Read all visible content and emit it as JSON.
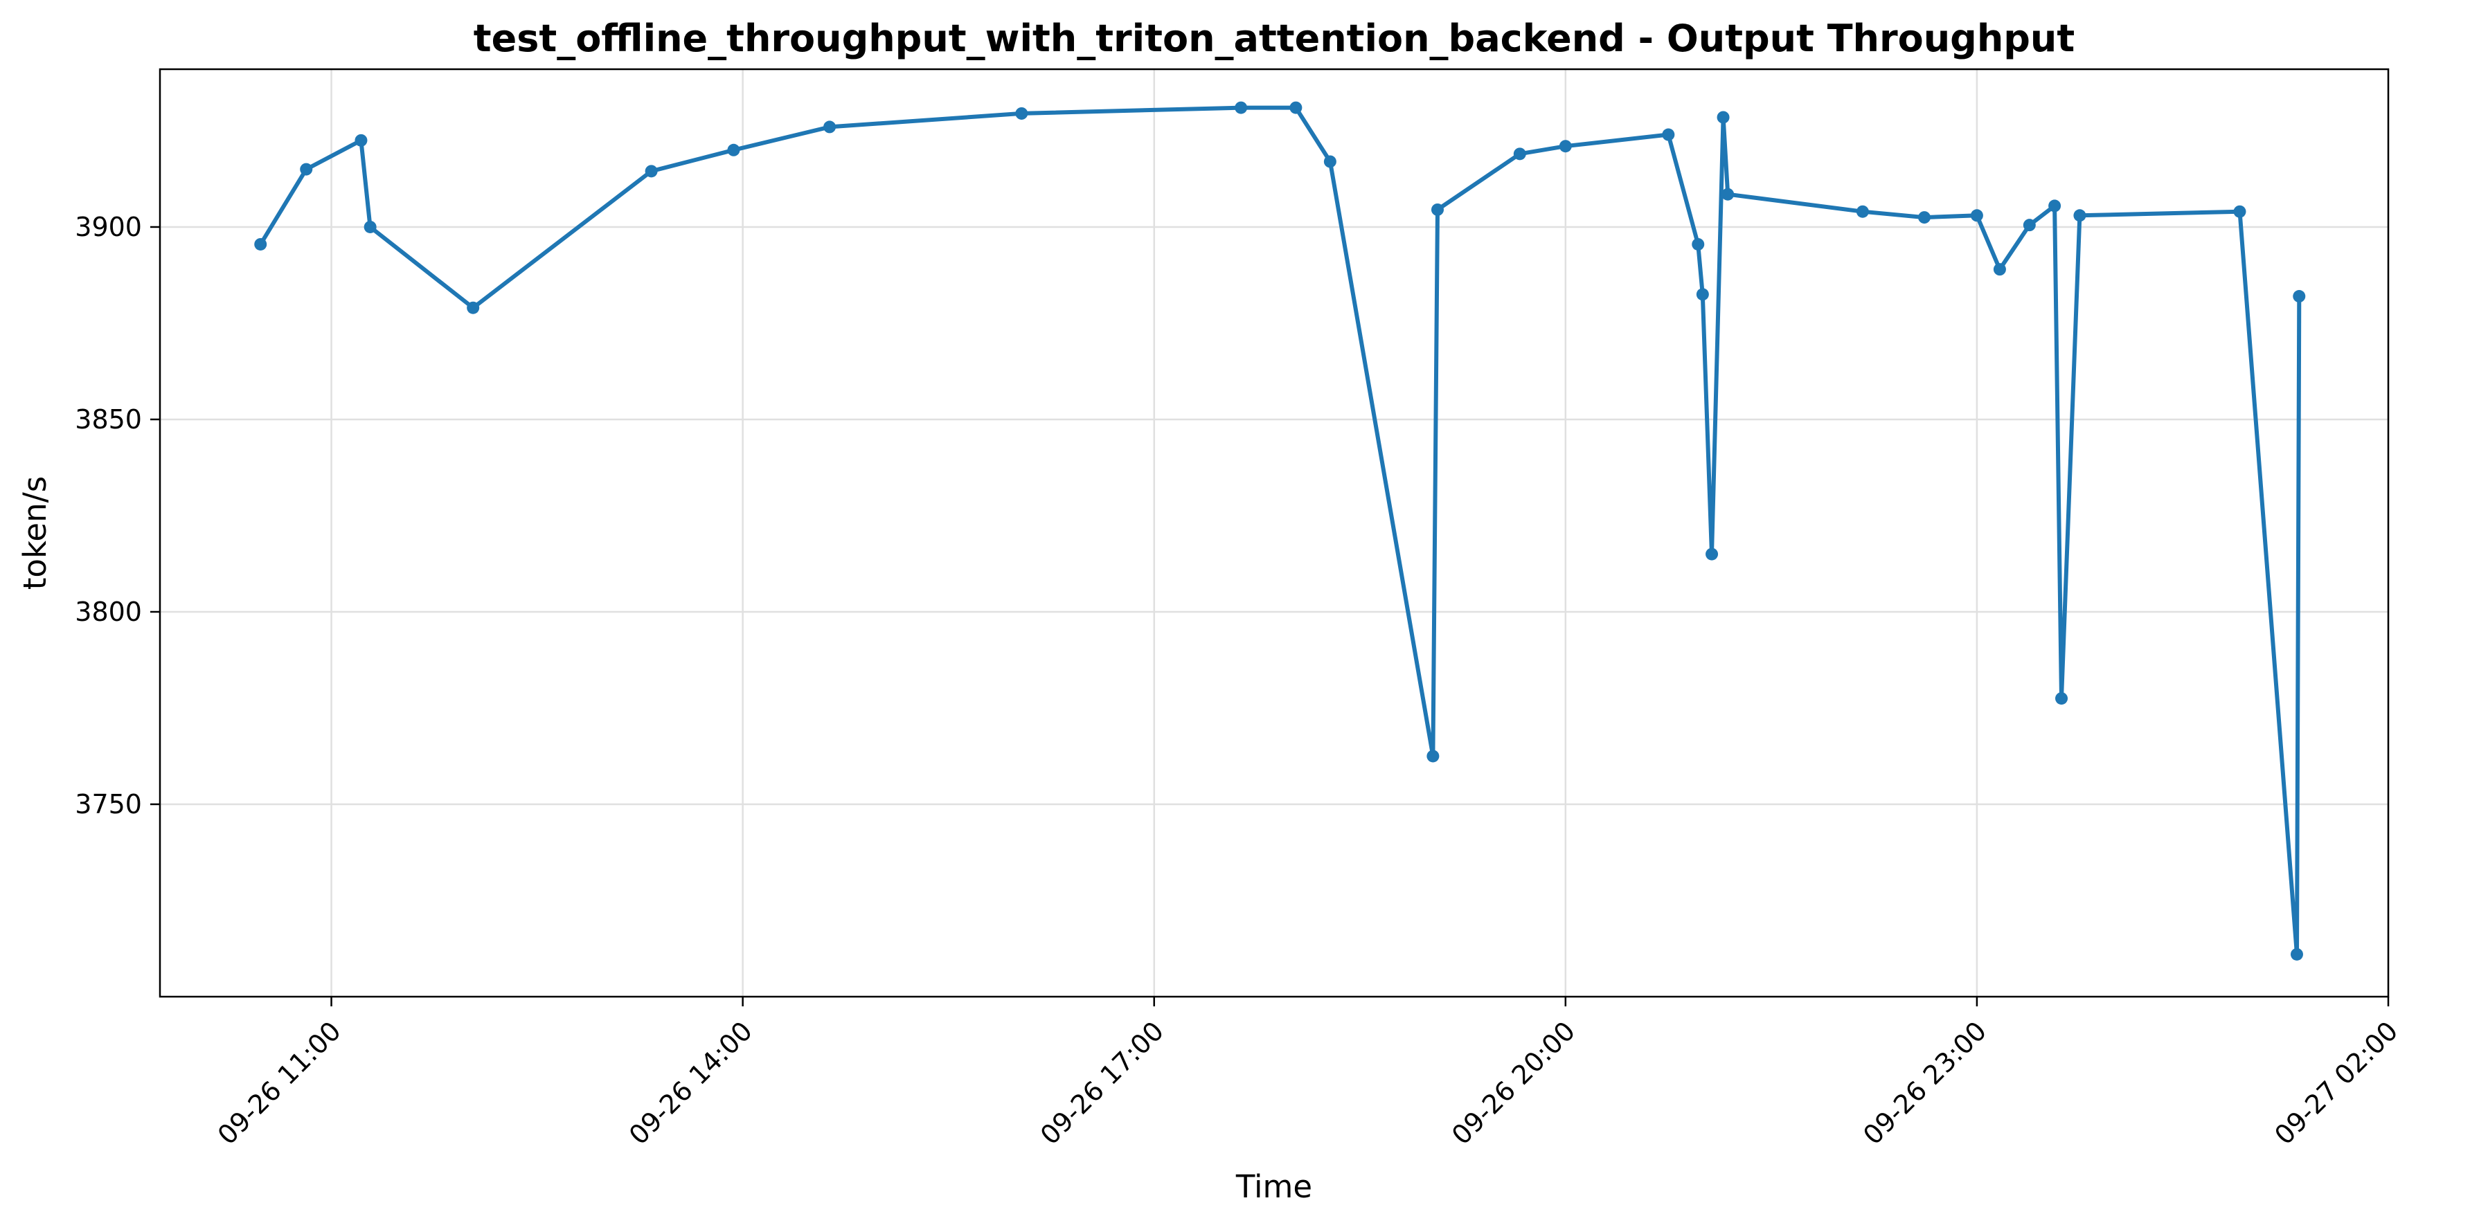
{
  "chart_data": {
    "type": "line",
    "title": "test_offline_throughput_with_triton_attention_backend - Output Throughput",
    "xlabel": "Time",
    "ylabel": "token/s",
    "grid": true,
    "x_range": [
      "2025-09-26 09:45",
      "2025-09-27 02:00"
    ],
    "ylim": [
      3700,
      3941
    ],
    "x_ticks": [
      {
        "value": "2025-09-26 11:00",
        "label": "09-26 11:00"
      },
      {
        "value": "2025-09-26 14:00",
        "label": "09-26 14:00"
      },
      {
        "value": "2025-09-26 17:00",
        "label": "09-26 17:00"
      },
      {
        "value": "2025-09-26 20:00",
        "label": "09-26 20:00"
      },
      {
        "value": "2025-09-26 23:00",
        "label": "09-26 23:00"
      },
      {
        "value": "2025-09-27 02:00",
        "label": "09-27 02:00"
      }
    ],
    "y_ticks": [
      3750,
      3800,
      3850,
      3900
    ],
    "color": "#1f77b4",
    "series": [
      {
        "name": "",
        "points": [
          {
            "x": "2025-09-26 10:29",
            "y": 3895.5
          },
          {
            "x": "2025-09-26 10:49",
            "y": 3915
          },
          {
            "x": "2025-09-26 11:13",
            "y": 3922.5
          },
          {
            "x": "2025-09-26 11:17",
            "y": 3900
          },
          {
            "x": "2025-09-26 12:02",
            "y": 3879
          },
          {
            "x": "2025-09-26 13:20",
            "y": 3914.5
          },
          {
            "x": "2025-09-26 13:56",
            "y": 3920
          },
          {
            "x": "2025-09-26 14:38",
            "y": 3926
          },
          {
            "x": "2025-09-26 16:02",
            "y": 3929.5
          },
          {
            "x": "2025-09-26 17:38",
            "y": 3931
          },
          {
            "x": "2025-09-26 18:02",
            "y": 3931
          },
          {
            "x": "2025-09-26 18:17",
            "y": 3917
          },
          {
            "x": "2025-09-26 19:02",
            "y": 3762.5
          },
          {
            "x": "2025-09-26 19:04",
            "y": 3904.5
          },
          {
            "x": "2025-09-26 19:40",
            "y": 3919
          },
          {
            "x": "2025-09-26 20:00",
            "y": 3921
          },
          {
            "x": "2025-09-26 20:45",
            "y": 3924
          },
          {
            "x": "2025-09-26 20:58",
            "y": 3895.5
          },
          {
            "x": "2025-09-26 21:00",
            "y": 3882.5
          },
          {
            "x": "2025-09-26 21:04",
            "y": 3815
          },
          {
            "x": "2025-09-26 21:09",
            "y": 3928.5
          },
          {
            "x": "2025-09-26 21:11",
            "y": 3908.5
          },
          {
            "x": "2025-09-26 22:10",
            "y": 3904
          },
          {
            "x": "2025-09-26 22:37",
            "y": 3902.5
          },
          {
            "x": "2025-09-26 23:00",
            "y": 3903
          },
          {
            "x": "2025-09-26 23:10",
            "y": 3889
          },
          {
            "x": "2025-09-26 23:23",
            "y": 3900.5
          },
          {
            "x": "2025-09-26 23:34",
            "y": 3905.5
          },
          {
            "x": "2025-09-26 23:37",
            "y": 3777.5
          },
          {
            "x": "2025-09-26 23:45",
            "y": 3903
          },
          {
            "x": "2025-09-27 00:55",
            "y": 3904
          },
          {
            "x": "2025-09-27 01:20",
            "y": 3711
          },
          {
            "x": "2025-09-27 01:21",
            "y": 3882
          }
        ]
      }
    ]
  }
}
